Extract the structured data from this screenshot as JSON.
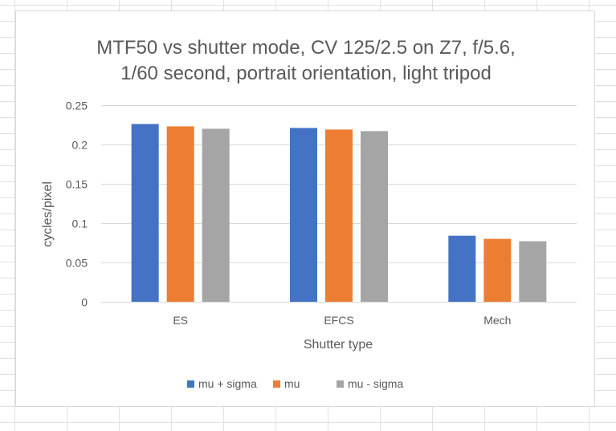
{
  "chart_data": {
    "type": "bar",
    "title_lines": [
      "MTF50 vs shutter mode, CV 125/2.5 on Z7, f/5.6,",
      "1/60 second, portrait orientation, light tripod"
    ],
    "xlabel": "Shutter type",
    "ylabel": "cycles/pixel",
    "categories": [
      "ES",
      "EFCS",
      "Mech"
    ],
    "series": [
      {
        "name": "mu + sigma",
        "color": "#4472c4",
        "values": [
          0.226,
          0.221,
          0.084
        ]
      },
      {
        "name": "mu",
        "color": "#ed7d31",
        "values": [
          0.223,
          0.219,
          0.08
        ]
      },
      {
        "name": "mu - sigma",
        "color": "#a5a5a5",
        "values": [
          0.22,
          0.217,
          0.077
        ]
      }
    ],
    "ylim": [
      0,
      0.25
    ],
    "yticks": [
      "0",
      "0.05",
      "0.1",
      "0.15",
      "0.2",
      "0.25"
    ],
    "grid": true,
    "legend_position": "bottom"
  }
}
